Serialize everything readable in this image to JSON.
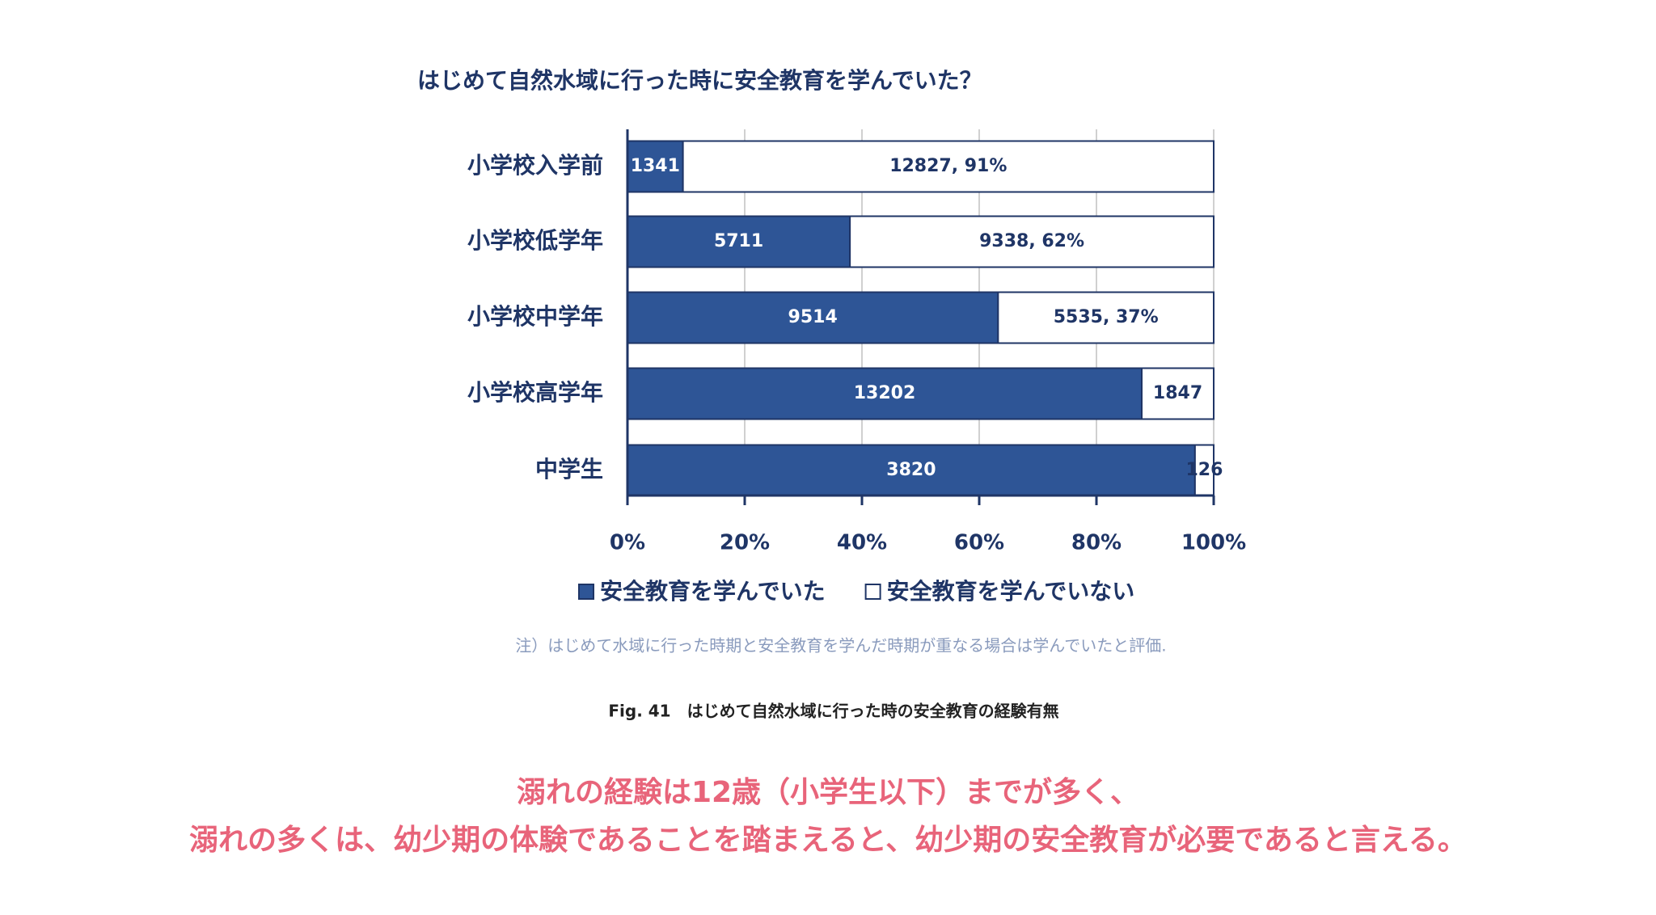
{
  "chart_data": {
    "type": "stacked-percent-hbar",
    "title": "はじめて自然水域に行った時に安全教育を学んでいた？",
    "categories": [
      "小学校入学前",
      "小学校低学年",
      "小学校中学年",
      "小学校高学年",
      "中学生"
    ],
    "series": [
      {
        "name": "安全教育を学んでいた",
        "color": "#2e5596",
        "values": [
          1341,
          5711,
          9514,
          13202,
          3820
        ]
      },
      {
        "name": "安全教育を学んでいない",
        "color": "#ffffff",
        "values": [
          12827,
          9338,
          5535,
          1847,
          126
        ],
        "value_labels": [
          "12827, 91%",
          "9338, 62%",
          "5535, 37%",
          "1847",
          "126"
        ]
      }
    ],
    "xlim": [
      0,
      100
    ],
    "xticks": [
      {
        "value": 0,
        "label": "0%"
      },
      {
        "value": 20,
        "label": "20%"
      },
      {
        "value": 40,
        "label": "40%"
      },
      {
        "value": 60,
        "label": "60%"
      },
      {
        "value": 80,
        "label": "80%"
      },
      {
        "value": 100,
        "label": "100%"
      }
    ],
    "grid": true,
    "note": "注）はじめて水域に行った時期と安全教育を学んだ時期が重なる場合は学んでいたと評価.",
    "caption": "Fig. 41　はじめて自然水域に行った時の安全教育の経験有無"
  },
  "conclusion": [
    "溺れの経験は12歳（小学生以下）までが多く、",
    "溺れの多くは、幼少期の体験であることを踏まえると、幼少期の安全教育が必要であると言える。"
  ]
}
